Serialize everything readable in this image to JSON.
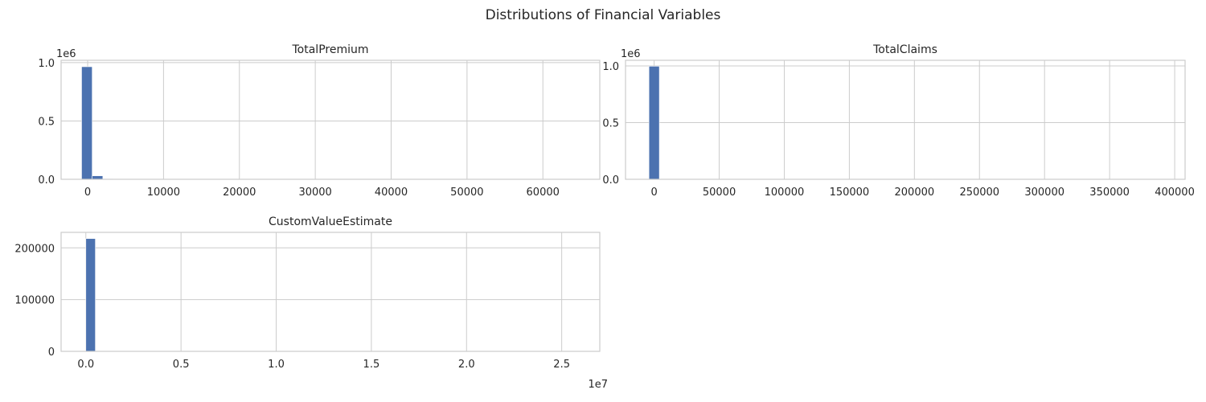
{
  "figure": {
    "suptitle": "Distributions of Financial Variables"
  },
  "colors": {
    "bar": "#4c72b0",
    "grid": "#cccccc",
    "text": "#262626"
  },
  "chart_data": [
    {
      "type": "bar",
      "title": "TotalPremium",
      "xlabel": "",
      "ylabel": "",
      "y_offset_label": "1e6",
      "x_offset_label": "",
      "xlim": [
        -3500,
        67500
      ],
      "ylim": [
        0,
        1.02
      ],
      "xticks": [
        0,
        10000,
        20000,
        30000,
        40000,
        50000,
        60000
      ],
      "xtick_labels": [
        "0",
        "10000",
        "20000",
        "30000",
        "40000",
        "50000",
        "60000"
      ],
      "yticks": [
        0,
        0.5,
        1.0
      ],
      "ytick_labels": [
        "0.0",
        "0.5",
        "1.0"
      ],
      "bins": [
        {
          "x0": -800,
          "x1": 600,
          "value": 0.965
        },
        {
          "x0": 600,
          "x1": 2000,
          "value": 0.03
        },
        {
          "x0": 2000,
          "x1": 3400,
          "value": 0.004
        }
      ],
      "grid": true
    },
    {
      "type": "bar",
      "title": "TotalClaims",
      "xlabel": "",
      "ylabel": "",
      "y_offset_label": "1e6",
      "x_offset_label": "",
      "xlim": [
        -22000,
        408000
      ],
      "ylim": [
        0,
        1.05
      ],
      "xticks": [
        0,
        50000,
        100000,
        150000,
        200000,
        250000,
        300000,
        350000,
        400000
      ],
      "xtick_labels": [
        "0",
        "50000",
        "100000",
        "150000",
        "200000",
        "250000",
        "300000",
        "350000",
        "400000"
      ],
      "yticks": [
        0,
        0.5,
        1.0
      ],
      "ytick_labels": [
        "0.0",
        "0.5",
        "1.0"
      ],
      "bins": [
        {
          "x0": -4000,
          "x1": 4000,
          "value": 0.998
        }
      ],
      "grid": true
    },
    {
      "type": "bar",
      "title": "CustomValueEstimate",
      "xlabel": "",
      "ylabel": "",
      "y_offset_label": "",
      "x_offset_label": "1e7",
      "xlim": [
        -0.13,
        2.7
      ],
      "ylim": [
        0,
        230000
      ],
      "xticks": [
        0,
        0.5,
        1.0,
        1.5,
        2.0,
        2.5
      ],
      "xtick_labels": [
        "0.0",
        "0.5",
        "1.0",
        "1.5",
        "2.0",
        "2.5"
      ],
      "yticks": [
        0,
        100000,
        200000
      ],
      "ytick_labels": [
        "0",
        "100000",
        "200000"
      ],
      "bins": [
        {
          "x0": 0.0,
          "x1": 0.05,
          "value": 218000
        }
      ],
      "grid": true
    }
  ]
}
